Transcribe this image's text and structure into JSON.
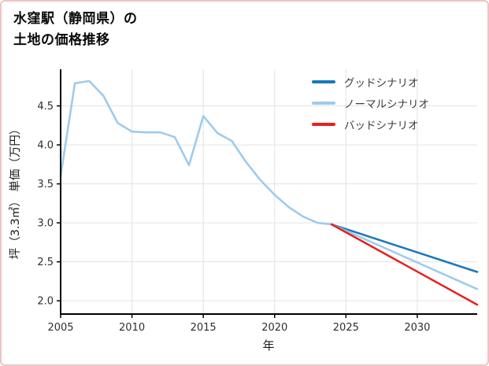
{
  "page": {
    "title_line1": "水窪駅（静岡県）の",
    "title_line2": "土地の価格推移"
  },
  "chart_data": {
    "type": "line",
    "title": "水窪駅（静岡県）の土地の価格推移",
    "xlabel": "年",
    "ylabel": "坪（3.3㎡） 単価（万円）",
    "xlim": [
      2005,
      2034.2
    ],
    "ylim": [
      1.83,
      4.97
    ],
    "xticks": [
      2005,
      2010,
      2015,
      2020,
      2025,
      2030
    ],
    "yticks": [
      2.0,
      2.5,
      3.0,
      3.5,
      4.0,
      4.5
    ],
    "grid": true,
    "legend_position": "upper right",
    "series": [
      {
        "name": "historical-price",
        "color": "#9ecbec",
        "width": 2.6,
        "in_legend": false,
        "x": [
          2005,
          2006,
          2007,
          2008,
          2009,
          2010,
          2011,
          2012,
          2013,
          2014,
          2015,
          2016,
          2017,
          2018,
          2019,
          2020,
          2021,
          2022,
          2023,
          2024
        ],
        "y": [
          3.6,
          4.79,
          4.82,
          4.63,
          4.28,
          4.17,
          4.16,
          4.16,
          4.1,
          3.74,
          4.37,
          4.15,
          4.05,
          3.78,
          3.55,
          3.36,
          3.2,
          3.08,
          3.0,
          2.98
        ]
      },
      {
        "name": "good-scenario",
        "color": "#1878be",
        "width": 2.5,
        "in_legend": true,
        "x": [
          2024,
          2034.2
        ],
        "y": [
          2.98,
          2.37
        ]
      },
      {
        "name": "normal-scenario",
        "color": "#9ecbec",
        "width": 2.5,
        "in_legend": true,
        "x": [
          2024,
          2034.2
        ],
        "y": [
          2.98,
          2.15
        ]
      },
      {
        "name": "bad-scenario",
        "color": "#e62020",
        "width": 2.5,
        "in_legend": true,
        "x": [
          2024,
          2034.2
        ],
        "y": [
          2.98,
          1.95
        ]
      }
    ],
    "legend": [
      {
        "label": "グッドシナリオ",
        "color": "#1878be"
      },
      {
        "label": "ノーマルシナリオ",
        "color": "#9ecbec"
      },
      {
        "label": "バッドシナリオ",
        "color": "#e62020"
      }
    ]
  }
}
